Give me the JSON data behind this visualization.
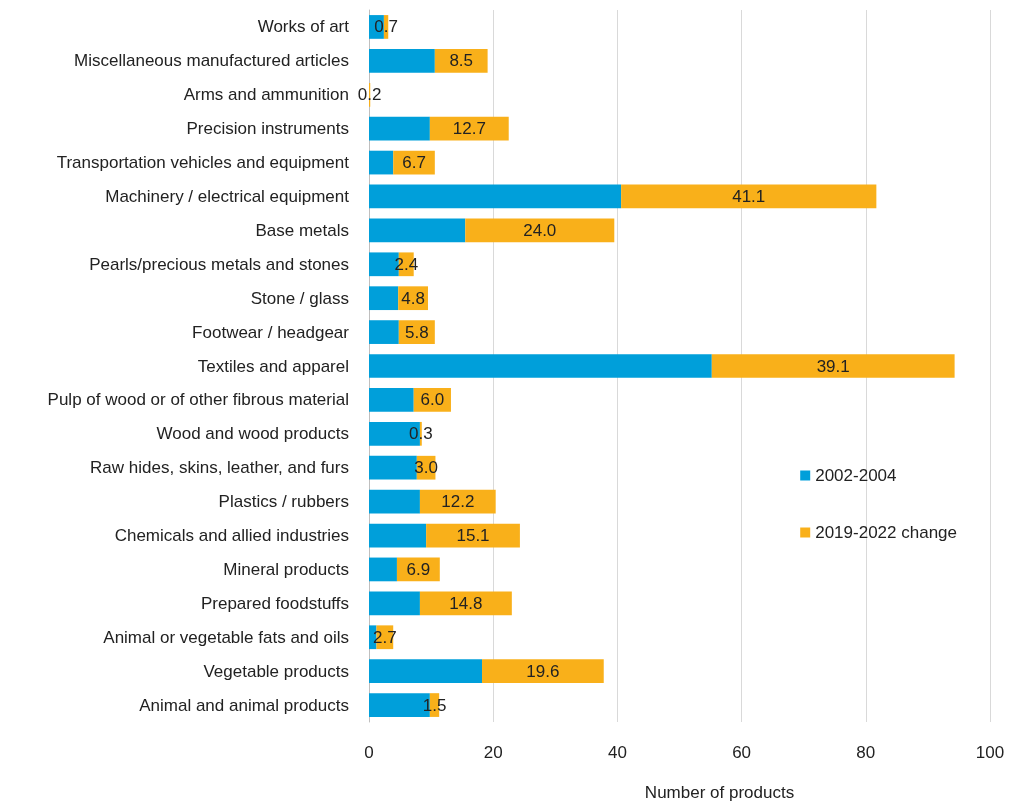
{
  "chart_data": {
    "type": "bar",
    "orientation": "horizontal",
    "stacked": true,
    "xlabel": "Number of products",
    "categories": [
      "Works of art",
      "Miscellaneous manufactured articles",
      "Arms and ammunition",
      "Precision instruments",
      "Transportation vehicles and equipment",
      "Machinery / electrical equipment",
      "Base metals",
      "Pearls/precious metals and stones",
      "Stone / glass",
      "Footwear / headgear",
      "Textiles and apparel",
      "Pulp of wood or of other fibrous material",
      "Wood and wood products",
      "Raw hides, skins, leather, and furs",
      "Plastics / rubbers",
      "Chemicals and allied industries",
      "Mineral products",
      "Prepared foodstuffs",
      "Animal or vegetable fats and oils",
      "Vegetable products",
      "Animal and animal products"
    ],
    "series": [
      {
        "name": "2002-2004",
        "color": "#009fda",
        "values": [
          2.4,
          10.6,
          0,
          9.8,
          3.9,
          40.6,
          15.5,
          4.8,
          4.7,
          4.8,
          55.2,
          7.2,
          8.2,
          7.7,
          8.2,
          9.2,
          4.5,
          8.2,
          1.2,
          18.2,
          9.8
        ]
      },
      {
        "name": "2019-2022 change",
        "color": "#f9b01a",
        "values": [
          0.7,
          8.5,
          0.2,
          12.7,
          6.7,
          41.1,
          24.0,
          2.4,
          4.8,
          5.8,
          39.1,
          6.0,
          0.3,
          3.0,
          12.2,
          15.1,
          6.9,
          14.8,
          2.7,
          19.6,
          1.5
        ],
        "value_labels": [
          "0.7",
          "8.5",
          "0.2",
          "12.7",
          "6.7",
          "41.1",
          "24.0",
          "2.4",
          "4.8",
          "5.8",
          "39.1",
          "6.0",
          "0.3",
          "3.0",
          "12.2",
          "15.1",
          "6.9",
          "14.8",
          "2.7",
          "19.6",
          "1.5"
        ]
      }
    ],
    "xlim": [
      0,
      100
    ],
    "xticks": [
      0,
      20,
      40,
      60,
      80,
      100
    ],
    "grid": "x",
    "legend": "right"
  }
}
